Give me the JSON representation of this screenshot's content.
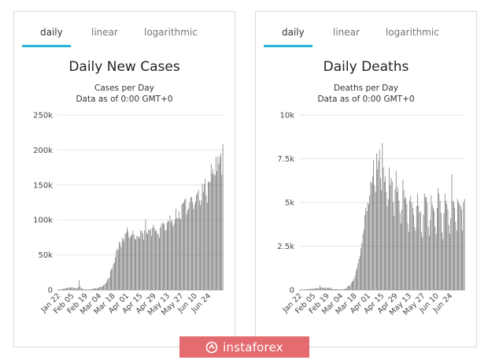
{
  "panels": [
    {
      "tabs": [
        {
          "label": "daily",
          "active": true
        },
        {
          "label": "linear",
          "active": false
        },
        {
          "label": "logarithmic",
          "active": false
        }
      ],
      "chart_data": {
        "type": "bar",
        "title": "Daily New Cases",
        "subtitle": "Cases per Day",
        "subtitle2": "Data as of 0:00 GMT+0",
        "ylim": [
          0,
          250000
        ],
        "yticks": [
          0,
          50000,
          100000,
          150000,
          200000,
          250000
        ],
        "ytick_labels": [
          "0",
          "50k",
          "100k",
          "150k",
          "200k",
          "250k"
        ],
        "xtick_labels": [
          "Jan 22",
          "Feb 05",
          "Feb 19",
          "Mar 04",
          "Mar 18",
          "Apr 01",
          "Apr 15",
          "Apr 29",
          "May 13",
          "May 27",
          "Jun 10",
          "Jun 24"
        ],
        "grid": "horizontal",
        "bar_color": "#666666",
        "values": [
          600,
          100,
          400,
          600,
          800,
          1200,
          1900,
          2000,
          2100,
          2600,
          2900,
          3200,
          3700,
          3200,
          3100,
          3800,
          3200,
          2700,
          2300,
          2800,
          2700,
          3200,
          14000,
          5400,
          2500,
          2100,
          1000,
          800,
          600,
          500,
          300,
          400,
          600,
          800,
          1000,
          1300,
          1800,
          1900,
          2300,
          2200,
          2500,
          2700,
          3300,
          3900,
          4300,
          4400,
          5200,
          7000,
          7800,
          9700,
          11000,
          15000,
          16000,
          18000,
          27000,
          30000,
          31000,
          37000,
          39000,
          47000,
          56000,
          59000,
          57000,
          69000,
          67000,
          61000,
          75000,
          70000,
          73000,
          80000,
          82000,
          89000,
          84000,
          76000,
          74000,
          78000,
          79000,
          85000,
          79000,
          73000,
          72000,
          77000,
          77000,
          74000,
          76000,
          85000,
          84000,
          81000,
          72000,
          85000,
          101000,
          82000,
          80000,
          87000,
          85000,
          87000,
          77000,
          89000,
          93000,
          88000,
          84000,
          85000,
          81000,
          79000,
          74000,
          89000,
          93000,
          97000,
          94000,
          95000,
          85000,
          86000,
          96000,
          99000,
          98000,
          106000,
          97000,
          100000,
          91000,
          94000,
          101000,
          116000,
          102000,
          103000,
          112000,
          102000,
          101000,
          122000,
          124000,
          125000,
          129000,
          131000,
          108000,
          114000,
          117000,
          126000,
          132000,
          133000,
          126000,
          116000,
          122000,
          126000,
          136000,
          139000,
          143000,
          128000,
          121000,
          128000,
          152000,
          140000,
          151000,
          159000,
          135000,
          125000,
          155000,
          154000,
          155000,
          180000,
          166000,
          173000,
          165000,
          164000,
          190000,
          170000,
          191000,
          180000,
          190000,
          195000,
          165000,
          208000
        ]
      }
    },
    {
      "tabs": [
        {
          "label": "daily",
          "active": true
        },
        {
          "label": "linear",
          "active": false
        },
        {
          "label": "logarithmic",
          "active": false
        }
      ],
      "chart_data": {
        "type": "bar",
        "title": "Daily Deaths",
        "subtitle": "Deaths per Day",
        "subtitle2": "Data as of 0:00 GMT+0",
        "ylim": [
          0,
          10000
        ],
        "yticks": [
          0,
          2500,
          5000,
          7500,
          10000
        ],
        "ytick_labels": [
          "0",
          "2.5k",
          "5k",
          "7.5k",
          "10k"
        ],
        "xtick_labels": [
          "Jan 22",
          "Feb 05",
          "Feb 19",
          "Mar 04",
          "Mar 18",
          "Apr 01",
          "Apr 15",
          "Apr 29",
          "May 13",
          "May 27",
          "Jun 10",
          "Jun 24"
        ],
        "grid": "horizontal",
        "bar_color": "#666666",
        "values": [
          17,
          0,
          8,
          16,
          14,
          26,
          26,
          38,
          43,
          46,
          45,
          57,
          64,
          66,
          73,
          73,
          86,
          89,
          97,
          108,
          97,
          254,
          121,
          143,
          143,
          105,
          98,
          136,
          114,
          118,
          109,
          97,
          150,
          71,
          52,
          29,
          44,
          47,
          35,
          42,
          31,
          38,
          31,
          30,
          28,
          26,
          62,
          60,
          99,
          174,
          226,
          234,
          264,
          400,
          480,
          521,
          641,
          810,
          1087,
          1236,
          1520,
          1785,
          1978,
          2400,
          2684,
          3190,
          3453,
          4280,
          4700,
          4500,
          5000,
          4900,
          5400,
          6200,
          6100,
          6500,
          7400,
          6000,
          5600,
          7800,
          6900,
          7400,
          8000,
          6400,
          5700,
          8400,
          7000,
          6200,
          6500,
          5600,
          4800,
          5200,
          7000,
          6000,
          6400,
          6200,
          5000,
          4200,
          5800,
          6800,
          5600,
          5900,
          5100,
          4400,
          3800,
          4600,
          6300,
          5700,
          5200,
          5300,
          4900,
          3800,
          3300,
          5100,
          5400,
          5000,
          4700,
          4300,
          3600,
          3400,
          4800,
          5500,
          4800,
          4400,
          4500,
          3300,
          3000,
          4300,
          5500,
          5300,
          5300,
          5000,
          3600,
          3100,
          4000,
          5400,
          4900,
          4700,
          4500,
          3600,
          3200,
          4700,
          5800,
          5500,
          5100,
          4400,
          3300,
          2900,
          4400,
          5500,
          5100,
          4900,
          4600,
          3700,
          3200,
          4100,
          6600,
          5100,
          5000,
          4700,
          3900,
          3400,
          5200,
          5000,
          4900,
          4800,
          4600,
          3400,
          5000,
          5200
        ]
      }
    }
  ],
  "watermark": {
    "text": "instaforex",
    "color": "#e46b6f"
  }
}
